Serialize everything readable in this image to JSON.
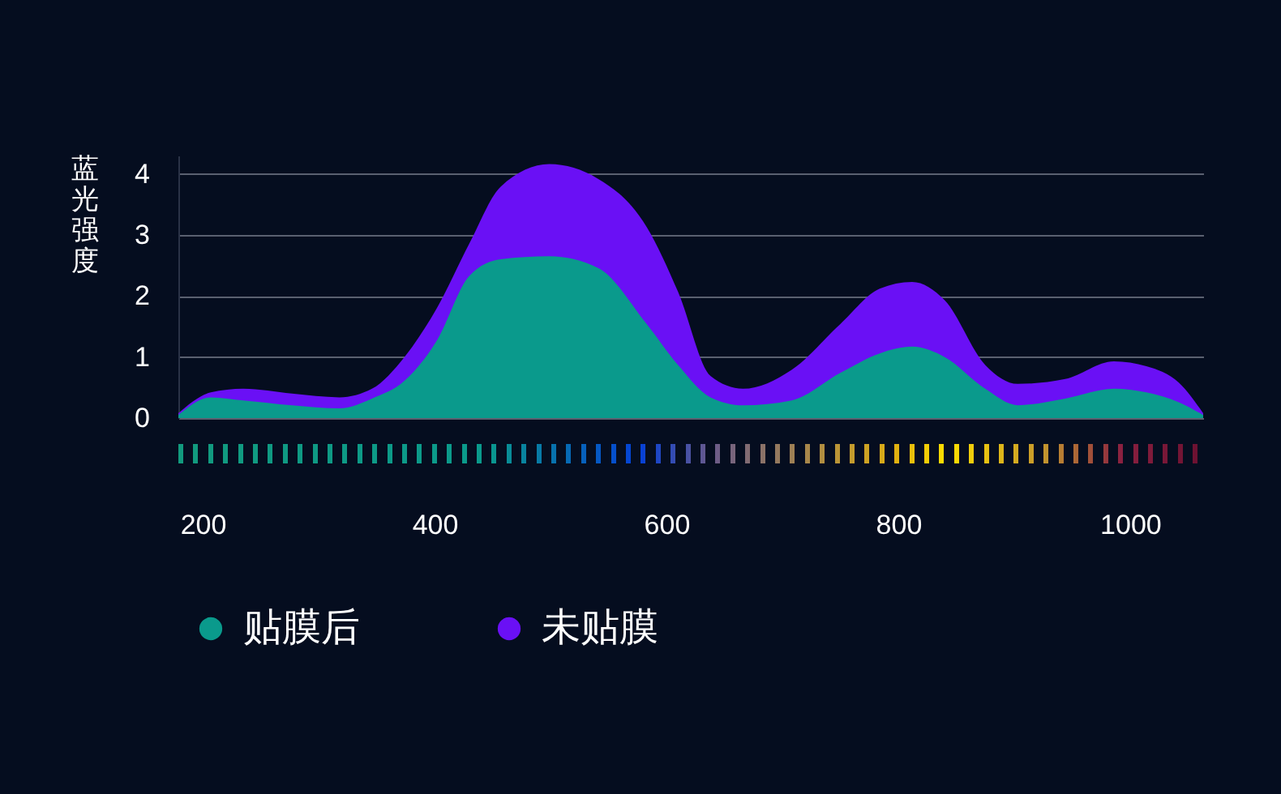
{
  "chart_data": {
    "type": "area",
    "ylabel": "蓝光强度",
    "x": [
      179,
      207,
      235,
      277,
      318,
      346,
      374,
      402,
      430,
      457,
      499,
      541,
      583,
      610,
      638,
      666,
      708,
      750,
      784,
      812,
      840,
      875,
      903,
      944,
      986,
      1014,
      1042,
      1063
    ],
    "series": [
      {
        "name": "贴膜后",
        "color": "#0a9a8c",
        "values": [
          0.05,
          0.34,
          0.29,
          0.21,
          0.16,
          0.32,
          0.61,
          1.27,
          2.33,
          2.6,
          2.65,
          2.46,
          1.54,
          0.87,
          0.34,
          0.21,
          0.29,
          0.74,
          1.06,
          1.17,
          1.0,
          0.48,
          0.21,
          0.32,
          0.48,
          0.42,
          0.26,
          0.05
        ]
      },
      {
        "name": "未贴膜",
        "color": "#6a10f5",
        "values": [
          0.08,
          0.42,
          0.48,
          0.4,
          0.34,
          0.48,
          1.0,
          1.8,
          2.86,
          3.79,
          4.16,
          3.92,
          3.13,
          2.07,
          0.69,
          0.48,
          0.79,
          1.54,
          2.12,
          2.23,
          1.93,
          0.87,
          0.56,
          0.64,
          0.93,
          0.85,
          0.58,
          0.08
        ]
      }
    ],
    "xlim": [
      179,
      1063
    ],
    "xticks": [
      200,
      400,
      600,
      800,
      1000
    ],
    "ylim": [
      0,
      4.3
    ],
    "yticks": [
      0,
      1,
      2,
      3,
      4
    ],
    "grid": "y",
    "legend": "bottom left"
  }
}
